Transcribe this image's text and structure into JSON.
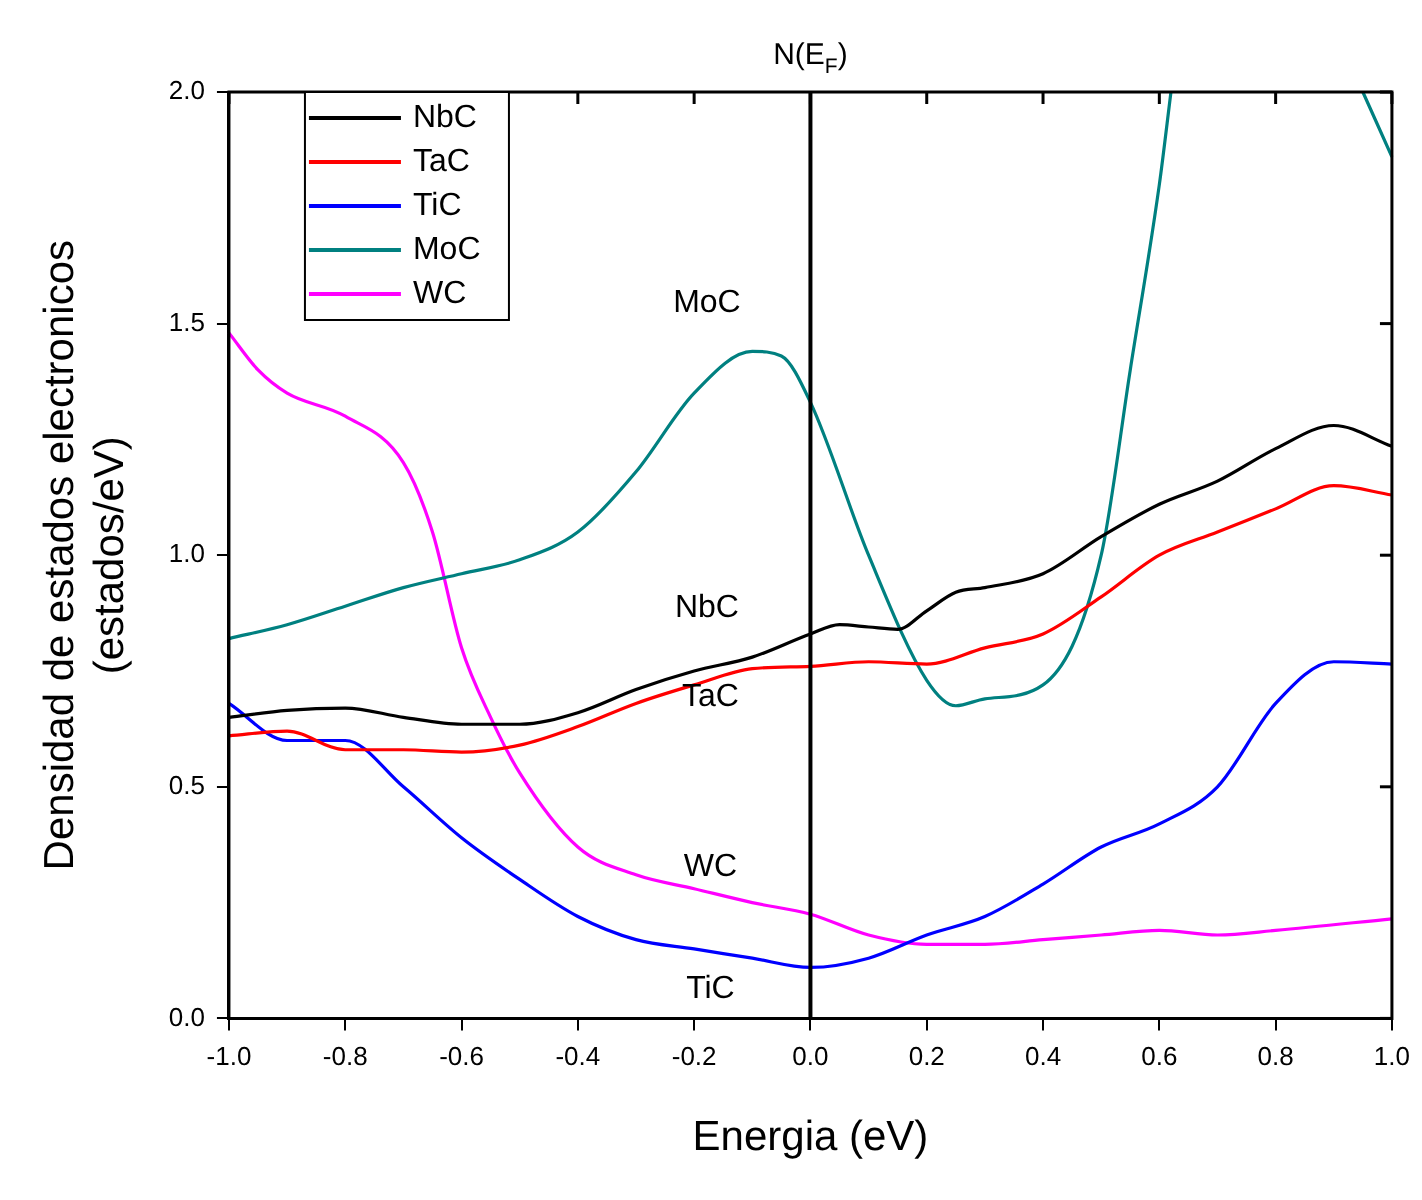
{
  "chart_data": {
    "type": "line",
    "xlabel": "Energia (eV)",
    "ylabel": "Densidad de estados electronicos\n(estados/eV)",
    "xlim": [
      -1.0,
      1.0
    ],
    "ylim": [
      0.0,
      2.0
    ],
    "xticks": [
      {
        "value": -1.0,
        "label": "-1.0"
      },
      {
        "value": -0.8,
        "label": "-0.8"
      },
      {
        "value": -0.6,
        "label": "-0.6"
      },
      {
        "value": -0.4,
        "label": "-0.4"
      },
      {
        "value": -0.2,
        "label": "-0.2"
      },
      {
        "value": 0.0,
        "label": "0.0"
      },
      {
        "value": 0.2,
        "label": "0.2"
      },
      {
        "value": 0.4,
        "label": "0.4"
      },
      {
        "value": 0.6,
        "label": "0.6"
      },
      {
        "value": 0.8,
        "label": "0.8"
      },
      {
        "value": 1.0,
        "label": "1.0"
      }
    ],
    "yticks": [
      {
        "value": 0.0,
        "label": "0.0"
      },
      {
        "value": 0.5,
        "label": "0.5"
      },
      {
        "value": 1.0,
        "label": "1.0"
      },
      {
        "value": 1.5,
        "label": "1.5"
      },
      {
        "value": 2.0,
        "label": "2.0"
      }
    ],
    "grid": false,
    "legend": "top left",
    "marker": "none",
    "line_style": "solid",
    "ref_lines": [
      {
        "axis": "x",
        "value": 0.0,
        "label": "N(E$_{F}$)",
        "color": "#000000"
      }
    ],
    "annotations": [
      "MoC",
      "NbC",
      "TaC",
      "WC",
      "TiC"
    ],
    "series": [
      {
        "name": "NbC",
        "color": "#000000",
        "x": [
          -1.0,
          -0.9,
          -0.8,
          -0.7,
          -0.6,
          -0.5,
          -0.4,
          -0.3,
          -0.2,
          -0.1,
          0.0,
          0.05,
          0.1,
          0.15,
          0.2,
          0.25,
          0.3,
          0.4,
          0.5,
          0.6,
          0.7,
          0.8,
          0.9,
          1.0
        ],
        "values": [
          0.65,
          0.665,
          0.67,
          0.65,
          0.635,
          0.635,
          0.66,
          0.71,
          0.75,
          0.78,
          0.83,
          0.85,
          0.845,
          0.84,
          0.88,
          0.92,
          0.93,
          0.96,
          1.04,
          1.11,
          1.16,
          1.23,
          1.28,
          1.235
        ]
      },
      {
        "name": "TaC",
        "color": "#ff0000",
        "x": [
          -1.0,
          -0.9,
          -0.8,
          -0.7,
          -0.6,
          -0.5,
          -0.4,
          -0.3,
          -0.2,
          -0.1,
          0.0,
          0.1,
          0.2,
          0.3,
          0.4,
          0.5,
          0.6,
          0.7,
          0.8,
          0.9,
          1.0
        ],
        "values": [
          0.61,
          0.62,
          0.58,
          0.58,
          0.575,
          0.59,
          0.63,
          0.68,
          0.72,
          0.755,
          0.76,
          0.77,
          0.765,
          0.8,
          0.83,
          0.91,
          1.0,
          1.05,
          1.1,
          1.15,
          1.13
        ]
      },
      {
        "name": "TiC",
        "color": "#0000ff",
        "x": [
          -1.0,
          -0.9,
          -0.8,
          -0.7,
          -0.6,
          -0.5,
          -0.4,
          -0.3,
          -0.2,
          -0.1,
          0.0,
          0.1,
          0.2,
          0.3,
          0.4,
          0.5,
          0.6,
          0.7,
          0.8,
          0.9,
          1.0
        ],
        "values": [
          0.68,
          0.6,
          0.6,
          0.5,
          0.39,
          0.3,
          0.22,
          0.17,
          0.15,
          0.13,
          0.11,
          0.13,
          0.18,
          0.22,
          0.29,
          0.37,
          0.42,
          0.5,
          0.68,
          0.77,
          0.765
        ]
      },
      {
        "name": "MoC",
        "color": "#008080",
        "x": [
          -1.0,
          -0.9,
          -0.8,
          -0.7,
          -0.6,
          -0.5,
          -0.4,
          -0.3,
          -0.2,
          -0.1,
          -0.05,
          0.0,
          0.1,
          0.2,
          0.25,
          0.3,
          0.4,
          0.5,
          0.55,
          0.6,
          0.62,
          0.8,
          0.95,
          1.0
        ],
        "values": [
          0.82,
          0.85,
          0.89,
          0.93,
          0.96,
          0.99,
          1.05,
          1.18,
          1.35,
          1.44,
          1.43,
          1.33,
          1.0,
          0.73,
          0.675,
          0.69,
          0.72,
          1.0,
          1.4,
          1.8,
          2.0,
          null,
          2.0,
          1.86
        ]
      },
      {
        "name": "WC",
        "color": "#ff00ff",
        "x": [
          -1.0,
          -0.95,
          -0.9,
          -0.8,
          -0.7,
          -0.65,
          -0.6,
          -0.55,
          -0.5,
          -0.4,
          -0.3,
          -0.2,
          -0.1,
          0.0,
          0.1,
          0.2,
          0.3,
          0.4,
          0.5,
          0.6,
          0.7,
          0.8,
          1.0
        ],
        "values": [
          1.48,
          1.4,
          1.35,
          1.3,
          1.2,
          1.05,
          0.8,
          0.65,
          0.53,
          0.37,
          0.31,
          0.28,
          0.25,
          0.225,
          0.18,
          0.16,
          0.16,
          0.17,
          0.18,
          0.19,
          0.18,
          0.19,
          0.215
        ]
      }
    ]
  }
}
